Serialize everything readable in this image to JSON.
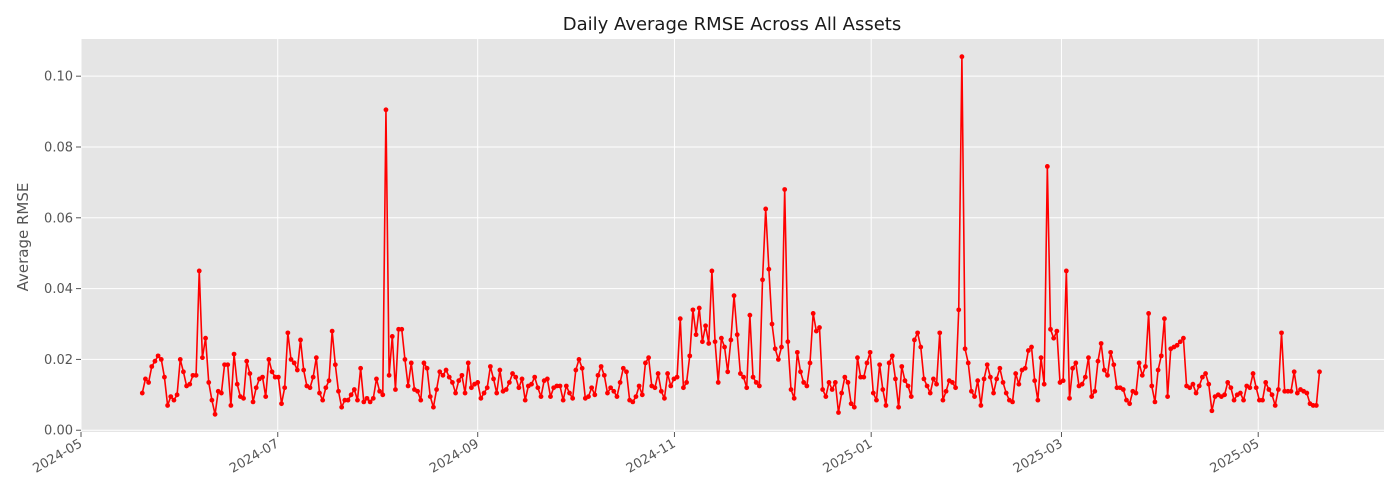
{
  "chart_data": {
    "type": "line",
    "title": "Daily Average RMSE Across All Assets",
    "xlabel": "",
    "ylabel": "Average RMSE",
    "x_ticks": [
      "2024-05",
      "2024-07",
      "2024-09",
      "2024-11",
      "2025-01",
      "2025-03",
      "2025-05"
    ],
    "y_ticks": [
      "0.00",
      "0.02",
      "0.04",
      "0.06",
      "0.08",
      "0.10"
    ],
    "xlim": [
      "2024-05-01",
      "2025-06-09"
    ],
    "ylim": [
      -0.0005,
      0.1105
    ],
    "grid": true,
    "legend": "none",
    "series_color": "#ff0000",
    "background_color": "#e5e5e5",
    "x_start": "2024-05-20",
    "x_end": "2025-05-20",
    "values": [
      0.0105,
      0.0145,
      0.0135,
      0.018,
      0.0195,
      0.021,
      0.02,
      0.015,
      0.007,
      0.0095,
      0.0085,
      0.01,
      0.02,
      0.0165,
      0.0125,
      0.013,
      0.0155,
      0.0155,
      0.045,
      0.0205,
      0.026,
      0.0135,
      0.0085,
      0.0045,
      0.011,
      0.0105,
      0.0185,
      0.0185,
      0.007,
      0.0215,
      0.013,
      0.0095,
      0.009,
      0.0195,
      0.016,
      0.008,
      0.012,
      0.0145,
      0.015,
      0.0095,
      0.02,
      0.0165,
      0.015,
      0.015,
      0.0075,
      0.012,
      0.0275,
      0.02,
      0.019,
      0.017,
      0.0255,
      0.017,
      0.0125,
      0.012,
      0.015,
      0.0205,
      0.0105,
      0.0085,
      0.012,
      0.014,
      0.028,
      0.0185,
      0.011,
      0.0065,
      0.0085,
      0.0085,
      0.01,
      0.0115,
      0.0085,
      0.0175,
      0.008,
      0.009,
      0.008,
      0.009,
      0.0145,
      0.011,
      0.01,
      0.0905,
      0.0155,
      0.0265,
      0.0115,
      0.0285,
      0.0285,
      0.02,
      0.0125,
      0.019,
      0.0115,
      0.011,
      0.0085,
      0.019,
      0.0175,
      0.0095,
      0.0065,
      0.0115,
      0.0165,
      0.0155,
      0.017,
      0.015,
      0.0135,
      0.0105,
      0.014,
      0.0155,
      0.0105,
      0.019,
      0.012,
      0.013,
      0.0135,
      0.009,
      0.0105,
      0.012,
      0.018,
      0.0145,
      0.0105,
      0.017,
      0.011,
      0.0115,
      0.0135,
      0.016,
      0.015,
      0.012,
      0.0145,
      0.0085,
      0.0125,
      0.013,
      0.015,
      0.012,
      0.0095,
      0.014,
      0.0145,
      0.0095,
      0.012,
      0.0125,
      0.0125,
      0.0085,
      0.0125,
      0.0105,
      0.009,
      0.017,
      0.02,
      0.0175,
      0.009,
      0.0095,
      0.012,
      0.01,
      0.0155,
      0.018,
      0.0155,
      0.0105,
      0.012,
      0.011,
      0.0095,
      0.0135,
      0.0175,
      0.0165,
      0.0085,
      0.008,
      0.0095,
      0.0125,
      0.01,
      0.019,
      0.0205,
      0.0125,
      0.012,
      0.016,
      0.011,
      0.009,
      0.016,
      0.0125,
      0.0145,
      0.015,
      0.0315,
      0.012,
      0.0135,
      0.021,
      0.034,
      0.027,
      0.0345,
      0.025,
      0.0295,
      0.0245,
      0.045,
      0.025,
      0.0135,
      0.026,
      0.0235,
      0.0165,
      0.0255,
      0.038,
      0.027,
      0.016,
      0.015,
      0.012,
      0.0325,
      0.015,
      0.0135,
      0.0125,
      0.0425,
      0.0625,
      0.0455,
      0.03,
      0.023,
      0.02,
      0.0235,
      0.068,
      0.025,
      0.0115,
      0.009,
      0.022,
      0.0165,
      0.0135,
      0.0125,
      0.019,
      0.033,
      0.028,
      0.029,
      0.0115,
      0.0095,
      0.0135,
      0.0115,
      0.0135,
      0.005,
      0.0105,
      0.015,
      0.0135,
      0.0075,
      0.0065,
      0.0205,
      0.015,
      0.015,
      0.019,
      0.022,
      0.0105,
      0.0085,
      0.0185,
      0.0115,
      0.007,
      0.019,
      0.021,
      0.0145,
      0.0065,
      0.018,
      0.014,
      0.0125,
      0.0095,
      0.0255,
      0.0275,
      0.0235,
      0.0145,
      0.0125,
      0.0105,
      0.0145,
      0.013,
      0.0275,
      0.0085,
      0.011,
      0.014,
      0.0135,
      0.012,
      0.034,
      0.1055,
      0.023,
      0.019,
      0.011,
      0.0095,
      0.014,
      0.007,
      0.0145,
      0.0185,
      0.015,
      0.0105,
      0.0145,
      0.0175,
      0.0135,
      0.0105,
      0.0085,
      0.008,
      0.016,
      0.013,
      0.017,
      0.0175,
      0.0225,
      0.0235,
      0.014,
      0.0085,
      0.0205,
      0.013,
      0.0745,
      0.0285,
      0.026,
      0.028,
      0.0135,
      0.014,
      0.045,
      0.009,
      0.0175,
      0.019,
      0.0125,
      0.013,
      0.015,
      0.0205,
      0.0095,
      0.011,
      0.0195,
      0.0245,
      0.017,
      0.0155,
      0.022,
      0.0185,
      0.012,
      0.012,
      0.0115,
      0.0085,
      0.0075,
      0.011,
      0.0105,
      0.019,
      0.0155,
      0.018,
      0.033,
      0.0125,
      0.008,
      0.017,
      0.021,
      0.0315,
      0.0095,
      0.023,
      0.0235,
      0.024,
      0.025,
      0.026,
      0.0125,
      0.012,
      0.013,
      0.0105,
      0.0125,
      0.015,
      0.016,
      0.013,
      0.0055,
      0.0095,
      0.01,
      0.0095,
      0.01,
      0.0135,
      0.012,
      0.0085,
      0.01,
      0.0105,
      0.0085,
      0.0125,
      0.012,
      0.016,
      0.012,
      0.0085,
      0.0085,
      0.0135,
      0.0115,
      0.01,
      0.007,
      0.0115,
      0.0275,
      0.011,
      0.011,
      0.011,
      0.0165,
      0.0105,
      0.0115,
      0.011,
      0.0105,
      0.0075,
      0.007,
      0.007,
      0.0165
    ]
  }
}
